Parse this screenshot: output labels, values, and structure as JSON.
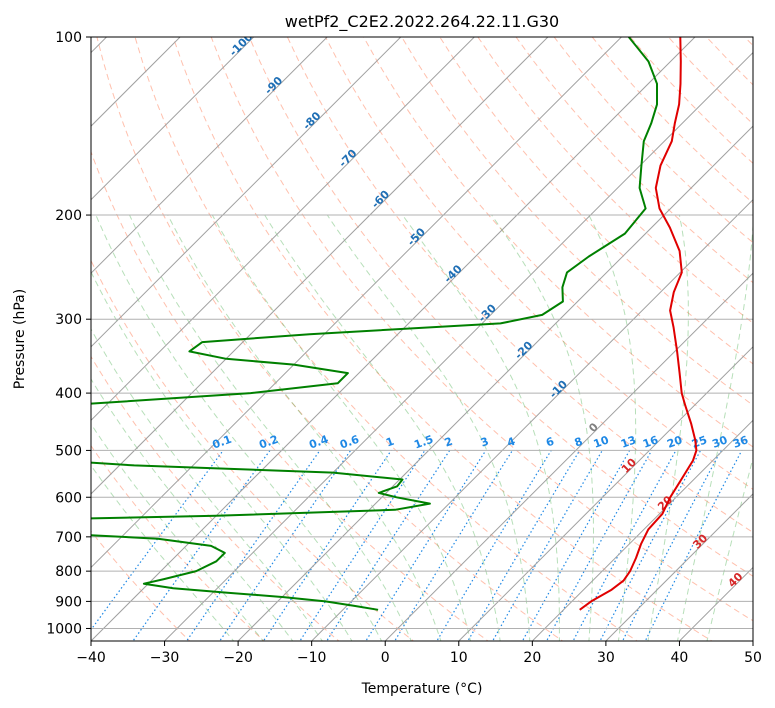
{
  "chart_data": {
    "type": "line",
    "title": "wetPf2_C2E2.2022.264.22.11.G30",
    "xlabel": "Temperature (°C)",
    "ylabel": "Pressure (hPa)",
    "xlim": [
      -40,
      50
    ],
    "ylim": [
      1050,
      100
    ],
    "y_scale": "log",
    "x_ticks": [
      -40,
      -30,
      -20,
      -10,
      0,
      10,
      20,
      30,
      40,
      50
    ],
    "x_tick_labels": [
      "−40",
      "−30",
      "−20",
      "−10",
      "0",
      "10",
      "20",
      "30",
      "40",
      "50"
    ],
    "y_ticks": [
      1000,
      900,
      800,
      700,
      600,
      500,
      400,
      300,
      200,
      100
    ],
    "y_tick_labels": [
      "1000",
      "900",
      "800",
      "700",
      "600",
      "500",
      "400",
      "300",
      "200",
      "100"
    ],
    "grid": true,
    "series": [
      {
        "color": "#e00000",
        "points": [
          {
            "p": 930,
            "t": 22.2
          },
          {
            "p": 900,
            "t": 22.6
          },
          {
            "p": 860,
            "t": 23.8
          },
          {
            "p": 830,
            "t": 24.2
          },
          {
            "p": 800,
            "t": 23.8
          },
          {
            "p": 760,
            "t": 22.8
          },
          {
            "p": 720,
            "t": 21.6
          },
          {
            "p": 680,
            "t": 20.6
          },
          {
            "p": 640,
            "t": 20.4
          },
          {
            "p": 600,
            "t": 19.2
          },
          {
            "p": 560,
            "t": 18.3
          },
          {
            "p": 520,
            "t": 17.3
          },
          {
            "p": 500,
            "t": 16.4
          },
          {
            "p": 480,
            "t": 14.8
          },
          {
            "p": 450,
            "t": 12.0
          },
          {
            "p": 420,
            "t": 8.8
          },
          {
            "p": 400,
            "t": 6.6
          },
          {
            "p": 370,
            "t": 3.6
          },
          {
            "p": 340,
            "t": 0.3
          },
          {
            "p": 310,
            "t": -3.4
          },
          {
            "p": 290,
            "t": -6.2
          },
          {
            "p": 270,
            "t": -8.2
          },
          {
            "p": 250,
            "t": -9.8
          },
          {
            "p": 230,
            "t": -13.0
          },
          {
            "p": 210,
            "t": -17.5
          },
          {
            "p": 195,
            "t": -21.5
          },
          {
            "p": 180,
            "t": -24.8
          },
          {
            "p": 165,
            "t": -27.2
          },
          {
            "p": 150,
            "t": -29.0
          },
          {
            "p": 140,
            "t": -31.0
          },
          {
            "p": 130,
            "t": -33.0
          },
          {
            "p": 120,
            "t": -35.6
          },
          {
            "p": 110,
            "t": -38.6
          },
          {
            "p": 100,
            "t": -42.0
          }
        ]
      },
      {
        "color": "#008000",
        "points": [
          {
            "p": 930,
            "t": -5.2
          },
          {
            "p": 915,
            "t": -9.2
          },
          {
            "p": 900,
            "t": -13.5
          },
          {
            "p": 885,
            "t": -19.8
          },
          {
            "p": 870,
            "t": -28.0
          },
          {
            "p": 855,
            "t": -36.0
          },
          {
            "p": 840,
            "t": -40.6
          },
          {
            "p": 825,
            "t": -38.5
          },
          {
            "p": 800,
            "t": -35.2
          },
          {
            "p": 770,
            "t": -33.8
          },
          {
            "p": 745,
            "t": -33.8
          },
          {
            "p": 725,
            "t": -36.6
          },
          {
            "p": 705,
            "t": -44.8
          },
          {
            "p": 690,
            "t": -60.0
          },
          {
            "p": 675,
            "t": -75.0
          },
          {
            "p": 660,
            "t": -78.0
          },
          {
            "p": 645,
            "t": -40.0
          },
          {
            "p": 630,
            "t": -16.5
          },
          {
            "p": 615,
            "t": -12.6
          },
          {
            "p": 600,
            "t": -18.0
          },
          {
            "p": 590,
            "t": -21.0
          },
          {
            "p": 575,
            "t": -19.4
          },
          {
            "p": 560,
            "t": -19.6
          },
          {
            "p": 545,
            "t": -30.0
          },
          {
            "p": 530,
            "t": -58.0
          },
          {
            "p": 515,
            "t": -75.0
          },
          {
            "p": 505,
            "t": -78.0
          },
          {
            "p": 420,
            "t": -76.0
          },
          {
            "p": 400,
            "t": -52.0
          },
          {
            "p": 385,
            "t": -41.5
          },
          {
            "p": 370,
            "t": -41.5
          },
          {
            "p": 358,
            "t": -50.0
          },
          {
            "p": 350,
            "t": -60.0
          },
          {
            "p": 340,
            "t": -66.0
          },
          {
            "p": 328,
            "t": -65.5
          },
          {
            "p": 318,
            "t": -52.0
          },
          {
            "p": 305,
            "t": -27.5
          },
          {
            "p": 295,
            "t": -23.0
          },
          {
            "p": 280,
            "t": -22.0
          },
          {
            "p": 265,
            "t": -24.0
          },
          {
            "p": 250,
            "t": -25.4
          },
          {
            "p": 235,
            "t": -24.6
          },
          {
            "p": 215,
            "t": -22.8
          },
          {
            "p": 195,
            "t": -23.4
          },
          {
            "p": 180,
            "t": -27.0
          },
          {
            "p": 165,
            "t": -29.8
          },
          {
            "p": 150,
            "t": -32.8
          },
          {
            "p": 140,
            "t": -34.2
          },
          {
            "p": 130,
            "t": -36.0
          },
          {
            "p": 120,
            "t": -38.8
          },
          {
            "p": 110,
            "t": -43.0
          },
          {
            "p": 100,
            "t": -49.0
          }
        ]
      }
    ],
    "background_lines": {
      "isotherms_step": 10,
      "dry_adiabats_color": "#ff8c69",
      "moist_adiabats_color": "#4caf50",
      "mixing_ratio_color": "#1e88e5"
    },
    "isotherm_labels": [
      {
        "t": -100,
        "text": "-100"
      },
      {
        "t": -90,
        "text": "-90"
      },
      {
        "t": -80,
        "text": "-80"
      },
      {
        "t": -70,
        "text": "-70"
      },
      {
        "t": -60,
        "text": "-60"
      },
      {
        "t": -50,
        "text": "-50"
      },
      {
        "t": -40,
        "text": "-40"
      },
      {
        "t": -30,
        "text": "-30"
      },
      {
        "t": -20,
        "text": "-20"
      },
      {
        "t": -10,
        "text": "-10"
      },
      {
        "t": 0,
        "text": "0"
      },
      {
        "t": 10,
        "text": "10"
      },
      {
        "t": 20,
        "text": "20"
      },
      {
        "t": 30,
        "text": "30"
      },
      {
        "t": 40,
        "text": "40"
      }
    ],
    "mixing_ratio_labels": [
      "0.1",
      "0.2",
      "0.4",
      "0.6",
      "1",
      "1.5",
      "2",
      "3",
      "4",
      "6",
      "8",
      "10",
      "13",
      "16",
      "20",
      "25",
      "30",
      "36"
    ]
  }
}
